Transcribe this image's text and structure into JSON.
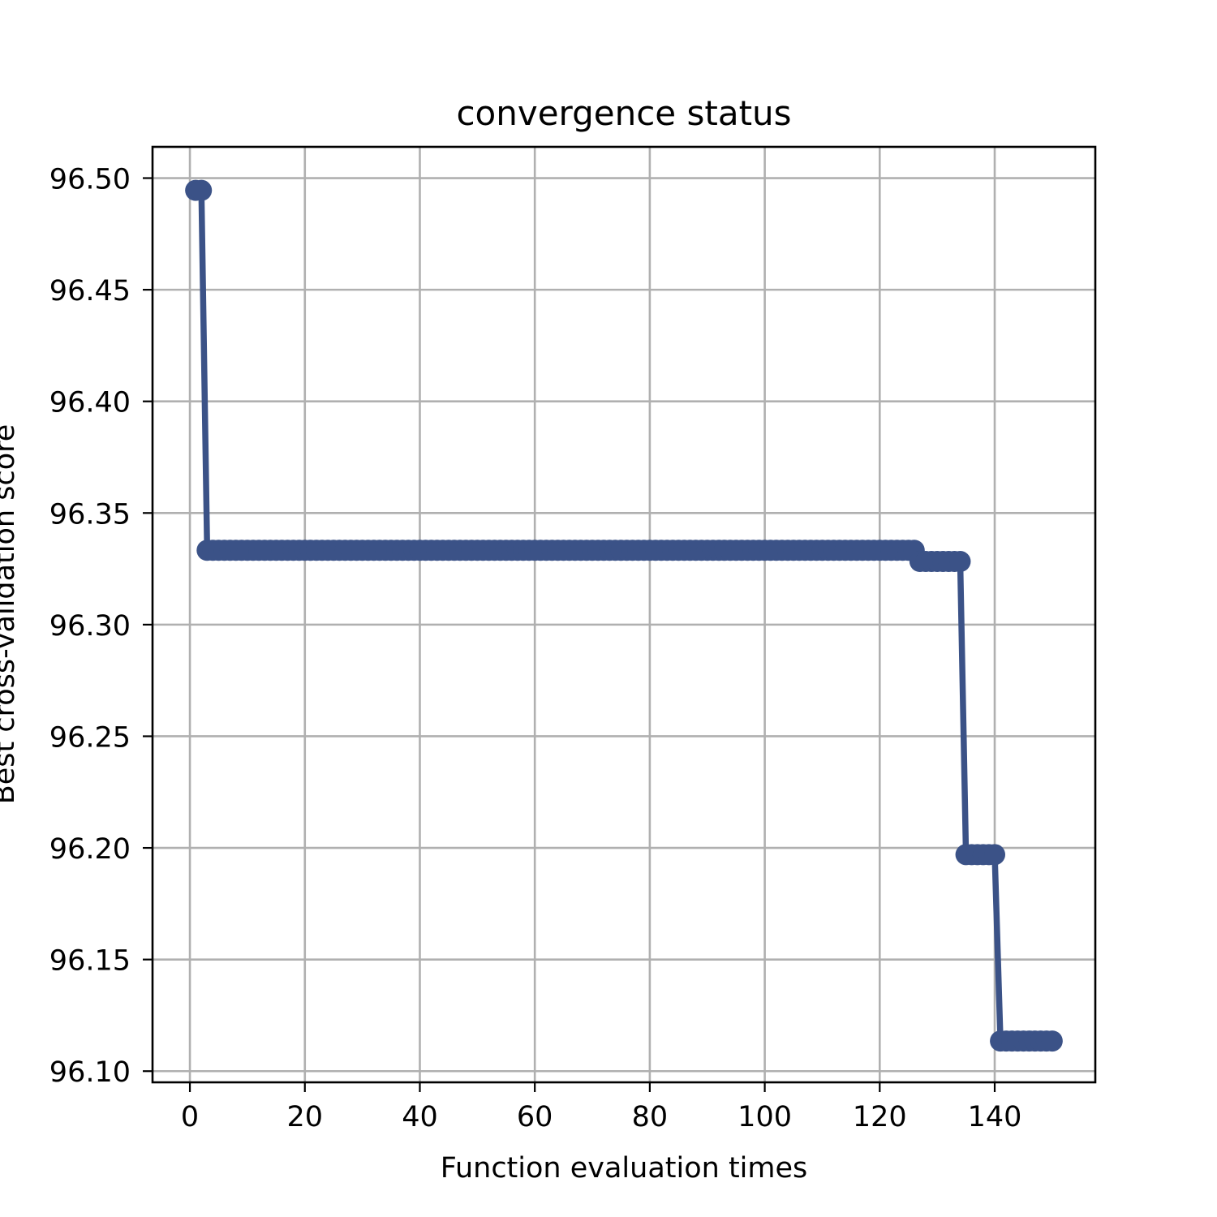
{
  "chart_data": {
    "type": "line",
    "title": "convergence status",
    "xlabel": "Function evaluation times",
    "ylabel": "Best cross-validation score",
    "xlim": [
      -6.5,
      157.5
    ],
    "ylim": [
      96.095,
      96.514
    ],
    "xticks": [
      0,
      20,
      40,
      60,
      80,
      100,
      120,
      140
    ],
    "xtick_labels": [
      "0",
      "20",
      "40",
      "60",
      "80",
      "100",
      "120",
      "140"
    ],
    "yticks": [
      96.1,
      96.15,
      96.2,
      96.25,
      96.3,
      96.35,
      96.4,
      96.45,
      96.5
    ],
    "ytick_labels": [
      "96.10",
      "96.15",
      "96.20",
      "96.25",
      "96.30",
      "96.35",
      "96.40",
      "96.45",
      "96.50"
    ],
    "grid": true,
    "line_color": "#3b5287",
    "grid_color": "#b0b0b0",
    "series": [
      {
        "segments": [
          {
            "x_start": 1,
            "x_end": 2,
            "y": 96.4945
          },
          {
            "x_start": 3,
            "x_end": 126,
            "y": 96.3333
          },
          {
            "x_start": 127,
            "x_end": 134,
            "y": 96.3283
          },
          {
            "x_start": 135,
            "x_end": 140,
            "y": 96.197
          },
          {
            "x_start": 141,
            "x_end": 150,
            "y": 96.1135
          }
        ]
      }
    ]
  }
}
